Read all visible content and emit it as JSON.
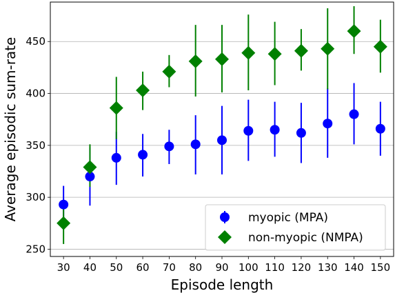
{
  "chart_data": {
    "type": "scatter",
    "xlabel": "Episode length",
    "ylabel": "Average episodic sum-rate",
    "x": [
      30,
      40,
      50,
      60,
      70,
      80,
      90,
      100,
      110,
      120,
      130,
      140,
      150
    ],
    "xticks": [
      "30",
      "40",
      "50",
      "60",
      "70",
      "80",
      "90",
      "100",
      "110",
      "120",
      "130",
      "140",
      "150"
    ],
    "yticks": [
      250,
      300,
      350,
      400,
      450
    ],
    "ytick_labels": [
      "250",
      "300",
      "350",
      "400",
      "450"
    ],
    "xlim": [
      25,
      155
    ],
    "ylim": [
      243,
      488
    ],
    "grid": "horizontal",
    "legend_position": "lower-right",
    "series": [
      {
        "name": "myopic (MPA)",
        "marker": "circle",
        "color": "#0000ff",
        "values": [
          293,
          320,
          338,
          341,
          349,
          351,
          355,
          364,
          365,
          362,
          371,
          380,
          366
        ],
        "err_low": [
          280,
          292,
          312,
          320,
          332,
          322,
          322,
          335,
          339,
          333,
          338,
          351,
          340
        ],
        "err_high": [
          311,
          348,
          363,
          361,
          365,
          379,
          388,
          394,
          392,
          391,
          405,
          410,
          392
        ]
      },
      {
        "name": "non-myopic (NMPA)",
        "marker": "diamond",
        "color": "#008000",
        "values": [
          275,
          329,
          386,
          403,
          421,
          431,
          433,
          439,
          438,
          441,
          443,
          460,
          445
        ],
        "err_low": [
          255,
          310,
          356,
          384,
          406,
          397,
          401,
          403,
          408,
          422,
          404,
          438,
          420
        ],
        "err_high": [
          293,
          351,
          416,
          421,
          437,
          466,
          466,
          476,
          469,
          462,
          482,
          484,
          471
        ]
      }
    ]
  }
}
